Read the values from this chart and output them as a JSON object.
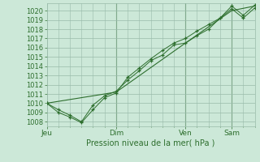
{
  "background_color": "#cce8d8",
  "grid_color": "#99bbaa",
  "line_color": "#2d6e2d",
  "title": "Pression niveau de la mer( hPa )",
  "yticks": [
    1008,
    1009,
    1010,
    1011,
    1012,
    1013,
    1014,
    1015,
    1016,
    1017,
    1018,
    1019,
    1020
  ],
  "ylim": [
    1007.5,
    1020.8
  ],
  "xlim": [
    0,
    108
  ],
  "day_labels": [
    "Jeu",
    "Dim",
    "Ven",
    "Sam"
  ],
  "day_positions": [
    0,
    36,
    72,
    96
  ],
  "line1_x": [
    0,
    6,
    12,
    18,
    24,
    30,
    36,
    42,
    48,
    54,
    60,
    66,
    72,
    78,
    84,
    90,
    96,
    102,
    108
  ],
  "line1_y": [
    1010.0,
    1009.3,
    1008.7,
    1008.0,
    1009.8,
    1010.8,
    1011.3,
    1012.5,
    1013.5,
    1014.6,
    1015.2,
    1016.3,
    1016.5,
    1017.3,
    1018.0,
    1019.2,
    1020.2,
    1019.2,
    1020.3
  ],
  "line2_x": [
    0,
    6,
    12,
    18,
    24,
    30,
    36,
    42,
    48,
    54,
    60,
    66,
    72,
    78,
    84,
    90,
    96,
    102,
    108
  ],
  "line2_y": [
    1010.0,
    1009.0,
    1008.5,
    1007.9,
    1009.3,
    1010.6,
    1011.1,
    1012.8,
    1013.8,
    1014.8,
    1015.7,
    1016.5,
    1017.0,
    1017.8,
    1018.5,
    1019.2,
    1020.5,
    1019.5,
    1020.6
  ],
  "line3_x": [
    0,
    36,
    72,
    96,
    108
  ],
  "line3_y": [
    1010.0,
    1011.2,
    1016.5,
    1020.0,
    1020.5
  ],
  "vline_positions": [
    36,
    72,
    96
  ]
}
